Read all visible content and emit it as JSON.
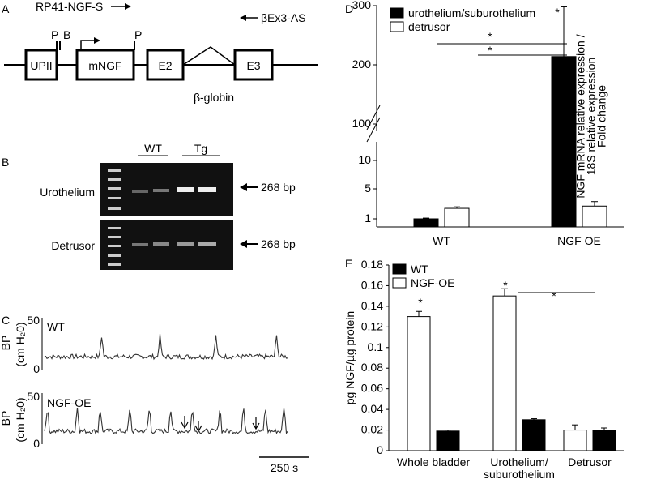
{
  "panel_labels": [
    "A",
    "B",
    "C",
    "D",
    "E"
  ],
  "panel_a": {
    "forward_primer": "RP41-NGF-S",
    "reverse_primer": "βEx3-AS",
    "sites": [
      "P",
      "B",
      "P"
    ],
    "boxes": [
      "UPII",
      "mNGF",
      "E2",
      "E3"
    ],
    "gene": "β-globin"
  },
  "panel_b": {
    "lanes": [
      "WT",
      "Tg"
    ],
    "rows": [
      "Urothelium",
      "Detrusor"
    ],
    "band_labels": [
      "268 bp",
      "268 bp"
    ]
  },
  "panel_c": {
    "traces": [
      {
        "name": "WT",
        "ticks": [
          50,
          0
        ],
        "ylabel": [
          "BP",
          "(cm H₂0)"
        ]
      },
      {
        "name": "NGF-OE",
        "ticks": [
          50,
          0
        ],
        "ylabel": [
          "BP",
          "(cm H₂0)"
        ]
      }
    ],
    "scale_bar": "250 s"
  },
  "chart_data": [
    {
      "type": "bar",
      "ylabel": "NGF mRNA relative expression /\n18S relative expression\nFold change",
      "categories": [
        "WT",
        "NGF OE"
      ],
      "series": [
        {
          "name": "urothelium/suburothelium",
          "color": "#000000",
          "values": [
            1,
            214
          ],
          "errors": [
            0.1,
            84
          ]
        },
        {
          "name": "detrusor",
          "color": "#ffffff",
          "values": [
            2.4,
            2.7
          ],
          "errors": [
            0.2,
            0.6
          ]
        }
      ],
      "ylim": [
        0,
        300
      ],
      "yticks": [
        1,
        5,
        10,
        100,
        200,
        300
      ],
      "axis_break": true,
      "annotations": [
        "*",
        "*",
        "*"
      ],
      "legend": "upper left"
    },
    {
      "type": "bar",
      "ylabel": "pg NGF/µg protein",
      "categories": [
        "Whole bladder",
        "Urothelium/\nsuburothelium",
        "Detrusor"
      ],
      "series": [
        {
          "name": "WT",
          "color": "#000000",
          "values": [
            0.019,
            0.03,
            0.02
          ],
          "errors": [
            0.001,
            0.001,
            0.002
          ]
        },
        {
          "name": "NGF-OE",
          "color": "#ffffff",
          "values": [
            0.13,
            0.15,
            0.02
          ],
          "errors": [
            0.005,
            0.007,
            0.005
          ]
        }
      ],
      "ylim": [
        0,
        0.18
      ],
      "yticks": [
        0,
        0.02,
        0.04,
        0.06,
        0.08,
        0.1,
        0.12,
        0.14,
        0.16,
        0.18
      ],
      "annotations": [
        "*",
        "*",
        "*"
      ],
      "legend": "upper left"
    }
  ]
}
